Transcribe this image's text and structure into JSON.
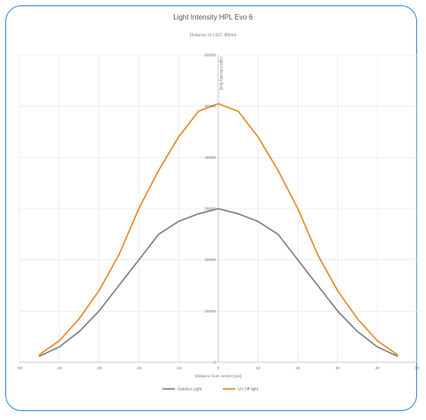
{
  "chart_data": {
    "type": "line",
    "title": "Light Intensity HPL Evo 6",
    "subtitle": "Distance to LED: 40mm",
    "xlabel": "Distance from centre [mm]",
    "ylabel": "Light Intensity [lux]",
    "xlim": [
      -50,
      50
    ],
    "ylim": [
      0,
      60000
    ],
    "x_ticks": [
      "-50",
      "-40",
      "-30",
      "-20",
      "-10",
      "0",
      "10",
      "20",
      "30",
      "40",
      "50"
    ],
    "y_ticks": [
      "0",
      "10000",
      "20000",
      "30000",
      "40000",
      "50000",
      "60000"
    ],
    "grid": true,
    "legend_position": "bottom",
    "x": [
      -45,
      -40,
      -35,
      -30,
      -25,
      -20,
      -15,
      -10,
      -5,
      0,
      5,
      10,
      15,
      20,
      25,
      30,
      35,
      40,
      45
    ],
    "series": [
      {
        "name": "Outdoor Light",
        "color": "#808080",
        "values": [
          1200,
          3000,
          6000,
          10000,
          15000,
          20000,
          25000,
          27500,
          29000,
          30000,
          29000,
          27500,
          25000,
          20000,
          15000,
          10000,
          6000,
          3000,
          1200
        ]
      },
      {
        "name": "UV Off light",
        "color": "#e8892a",
        "values": [
          1500,
          4200,
          8500,
          14000,
          21000,
          30000,
          37500,
          44000,
          49000,
          50500,
          49000,
          44000,
          37500,
          30000,
          21000,
          14000,
          8500,
          4200,
          1500
        ]
      }
    ]
  }
}
